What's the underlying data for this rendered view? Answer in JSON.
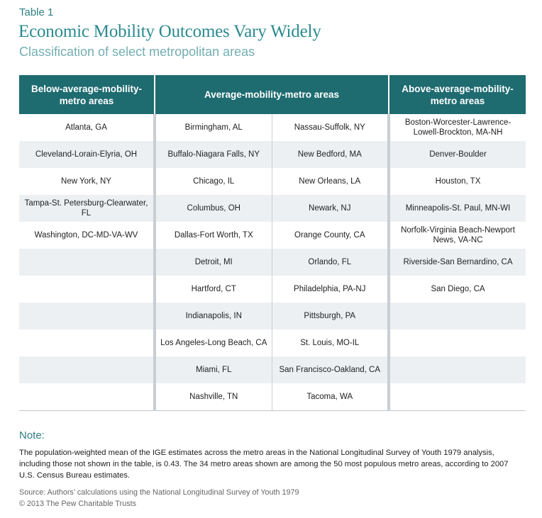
{
  "header": {
    "table_label": "Table 1",
    "title": "Economic Mobility Outcomes Vary Widely",
    "subtitle": "Classification of select metropolitan areas"
  },
  "table": {
    "headers": {
      "below": "Below-average-mobility-metro areas",
      "average": "Average-mobility-metro areas",
      "above": "Above-average-mobility-metro areas"
    },
    "rows": [
      {
        "below": "Atlanta, GA",
        "avg1": "Birmingham, AL",
        "avg2": "Nassau-Suffolk, NY",
        "above": "Boston-Worcester-Lawrence-Lowell-Brockton, MA-NH"
      },
      {
        "below": "Cleveland-Lorain-Elyria, OH",
        "avg1": "Buffalo-Niagara Falls, NY",
        "avg2": "New Bedford, MA",
        "above": "Denver-Boulder"
      },
      {
        "below": "New York, NY",
        "avg1": "Chicago, IL",
        "avg2": "New Orleans, LA",
        "above": "Houston, TX"
      },
      {
        "below": "Tampa-St. Petersburg-Clearwater, FL",
        "avg1": "Columbus, OH",
        "avg2": "Newark, NJ",
        "above": "Minneapolis-St. Paul, MN-WI"
      },
      {
        "below": "Washington, DC-MD-VA-WV",
        "avg1": "Dallas-Fort Worth, TX",
        "avg2": "Orange County, CA",
        "above": "Norfolk-Virginia Beach-Newport News, VA-NC"
      },
      {
        "below": "",
        "avg1": "Detroit, MI",
        "avg2": "Orlando, FL",
        "above": "Riverside-San Bernardino, CA"
      },
      {
        "below": "",
        "avg1": "Hartford, CT",
        "avg2": "Philadelphia, PA-NJ",
        "above": "San Diego, CA"
      },
      {
        "below": "",
        "avg1": "Indianapolis, IN",
        "avg2": "Pittsburgh, PA",
        "above": ""
      },
      {
        "below": "",
        "avg1": "Los Angeles-Long Beach, CA",
        "avg2": "St. Louis, MO-IL",
        "above": ""
      },
      {
        "below": "",
        "avg1": "Miami, FL",
        "avg2": "San Francisco-Oakland, CA",
        "above": ""
      },
      {
        "below": "",
        "avg1": "Nashville, TN",
        "avg2": "Tacoma, WA",
        "above": ""
      }
    ]
  },
  "note": {
    "heading": "Note:",
    "text": "The population-weighted mean of the IGE estimates across the metro areas in the National Longitudinal Survey of Youth 1979 analysis, including those not shown in the table, is 0.43. The 34 metro areas shown are among the 50 most populous metro areas, according to 2007 U.S. Census Bureau estimates.",
    "source": "Source: Authors’ calculations using the National Longitudinal Survey of Youth 1979",
    "copyright": "© 2013 The Pew Charitable Trusts"
  }
}
